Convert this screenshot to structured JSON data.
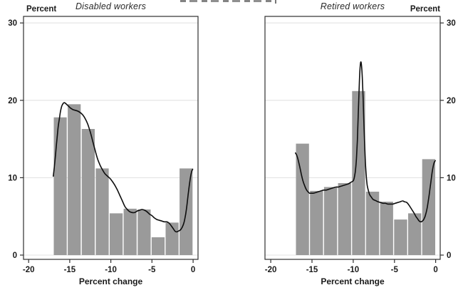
{
  "figure": {
    "kind": "two-panel histogram with kernel density curves",
    "background": "#ffffff"
  },
  "colors": {
    "bar_fill": "#9a9a9a",
    "density_curve": "#0d0d0d",
    "gridline": "#e3e3e3",
    "axis": "#2f2f2f",
    "text": "#1a1a1a"
  },
  "chart_data": [
    {
      "type": "bar",
      "variant": "histogram with kernel density overlay",
      "title": "Disabled workers",
      "xlabel": "Percent change",
      "ylabel": "Percent",
      "y_axis_side": "left",
      "grid": "horizontal",
      "xlim": [
        -20.62,
        0.6
      ],
      "ylim": [
        -0.55,
        30.85
      ],
      "x_ticks": [
        -20,
        -15,
        -10,
        -5,
        0
      ],
      "y_ticks": [
        0,
        10,
        20,
        30
      ],
      "bins": {
        "start": -17,
        "width": 1.7,
        "heights": [
          17.8,
          19.5,
          16.3,
          11.2,
          5.4,
          6.0,
          5.9,
          2.3,
          4.2,
          11.2
        ]
      },
      "density_curve": [
        [
          -17.0,
          10.2
        ],
        [
          -16.85,
          11.6
        ],
        [
          -16.7,
          13.3
        ],
        [
          -16.55,
          15.0
        ],
        [
          -16.4,
          16.6
        ],
        [
          -16.25,
          17.7
        ],
        [
          -16.1,
          18.7
        ],
        [
          -15.95,
          19.3
        ],
        [
          -15.8,
          19.6
        ],
        [
          -15.65,
          19.7
        ],
        [
          -15.5,
          19.6
        ],
        [
          -15.3,
          19.4
        ],
        [
          -15.1,
          19.2
        ],
        [
          -14.9,
          19.0
        ],
        [
          -14.6,
          18.8
        ],
        [
          -14.3,
          18.7
        ],
        [
          -14.0,
          18.6
        ],
        [
          -13.7,
          18.4
        ],
        [
          -13.4,
          18.1
        ],
        [
          -13.1,
          17.6
        ],
        [
          -12.8,
          16.9
        ],
        [
          -12.5,
          15.9
        ],
        [
          -12.2,
          14.7
        ],
        [
          -11.9,
          13.5
        ],
        [
          -11.6,
          12.4
        ],
        [
          -11.3,
          11.6
        ],
        [
          -11.0,
          11.0
        ],
        [
          -10.7,
          10.5
        ],
        [
          -10.4,
          10.2
        ],
        [
          -10.1,
          9.9
        ],
        [
          -9.8,
          9.5
        ],
        [
          -9.5,
          9.0
        ],
        [
          -9.2,
          8.4
        ],
        [
          -8.9,
          7.7
        ],
        [
          -8.6,
          7.0
        ],
        [
          -8.3,
          6.3
        ],
        [
          -8.0,
          5.9
        ],
        [
          -7.7,
          5.6
        ],
        [
          -7.4,
          5.5
        ],
        [
          -7.1,
          5.5
        ],
        [
          -6.8,
          5.7
        ],
        [
          -6.5,
          5.8
        ],
        [
          -6.2,
          5.9
        ],
        [
          -5.9,
          5.8
        ],
        [
          -5.6,
          5.6
        ],
        [
          -5.3,
          5.3
        ],
        [
          -5.0,
          5.1
        ],
        [
          -4.7,
          4.8
        ],
        [
          -4.4,
          4.6
        ],
        [
          -4.1,
          4.5
        ],
        [
          -3.8,
          4.4
        ],
        [
          -3.5,
          4.3
        ],
        [
          -3.2,
          4.3
        ],
        [
          -3.0,
          4.2
        ],
        [
          -2.8,
          4.0
        ],
        [
          -2.6,
          3.7
        ],
        [
          -2.4,
          3.4
        ],
        [
          -2.2,
          3.1
        ],
        [
          -2.0,
          3.0
        ],
        [
          -1.8,
          3.1
        ],
        [
          -1.5,
          3.3
        ],
        [
          -1.2,
          3.9
        ],
        [
          -1.0,
          4.7
        ],
        [
          -0.8,
          6.0
        ],
        [
          -0.6,
          7.8
        ],
        [
          -0.4,
          9.5
        ],
        [
          -0.2,
          10.7
        ],
        [
          -0.05,
          11.1
        ]
      ]
    },
    {
      "type": "bar",
      "variant": "histogram with kernel density overlay",
      "title": "Retired workers",
      "xlabel": "Percent change",
      "ylabel": "Percent",
      "y_axis_side": "right",
      "grid": "horizontal",
      "xlim": [
        -20.7,
        0.55
      ],
      "ylim": [
        -0.55,
        30.85
      ],
      "x_ticks": [
        -20,
        -15,
        -10,
        -5,
        0
      ],
      "y_ticks": [
        0,
        10,
        20,
        30
      ],
      "bins": {
        "start": -17,
        "width": 1.7,
        "heights": [
          14.4,
          8.3,
          8.8,
          9.3,
          21.2,
          8.2,
          6.9,
          4.6,
          5.4,
          12.4
        ]
      },
      "density_curve": [
        [
          -17.0,
          13.2
        ],
        [
          -16.85,
          12.9
        ],
        [
          -16.7,
          12.4
        ],
        [
          -16.5,
          11.5
        ],
        [
          -16.3,
          10.5
        ],
        [
          -16.1,
          9.6
        ],
        [
          -15.9,
          9.0
        ],
        [
          -15.7,
          8.5
        ],
        [
          -15.5,
          8.2
        ],
        [
          -15.3,
          8.0
        ],
        [
          -15.1,
          8.0
        ],
        [
          -14.8,
          8.0
        ],
        [
          -14.5,
          8.1
        ],
        [
          -14.2,
          8.2
        ],
        [
          -13.9,
          8.3
        ],
        [
          -13.6,
          8.4
        ],
        [
          -13.3,
          8.4
        ],
        [
          -13.0,
          8.5
        ],
        [
          -12.7,
          8.6
        ],
        [
          -12.4,
          8.7
        ],
        [
          -12.1,
          8.8
        ],
        [
          -11.8,
          8.8
        ],
        [
          -11.5,
          8.9
        ],
        [
          -11.2,
          9.0
        ],
        [
          -10.9,
          9.1
        ],
        [
          -10.6,
          9.2
        ],
        [
          -10.3,
          9.4
        ],
        [
          -10.0,
          9.6
        ],
        [
          -9.85,
          10.1
        ],
        [
          -9.7,
          11.2
        ],
        [
          -9.6,
          12.6
        ],
        [
          -9.5,
          14.8
        ],
        [
          -9.4,
          17.8
        ],
        [
          -9.3,
          21.0
        ],
        [
          -9.2,
          23.6
        ],
        [
          -9.1,
          24.9
        ],
        [
          -9.0,
          24.6
        ],
        [
          -8.9,
          23.0
        ],
        [
          -8.8,
          20.3
        ],
        [
          -8.7,
          17.0
        ],
        [
          -8.6,
          13.9
        ],
        [
          -8.5,
          11.6
        ],
        [
          -8.4,
          10.0
        ],
        [
          -8.3,
          9.0
        ],
        [
          -8.15,
          8.3
        ],
        [
          -8.0,
          7.8
        ],
        [
          -7.8,
          7.5
        ],
        [
          -7.6,
          7.2
        ],
        [
          -7.4,
          7.1
        ],
        [
          -7.2,
          7.0
        ],
        [
          -7.0,
          6.9
        ],
        [
          -6.7,
          6.8
        ],
        [
          -6.4,
          6.7
        ],
        [
          -6.1,
          6.7
        ],
        [
          -5.8,
          6.6
        ],
        [
          -5.5,
          6.6
        ],
        [
          -5.2,
          6.6
        ],
        [
          -4.9,
          6.7
        ],
        [
          -4.6,
          6.8
        ],
        [
          -4.3,
          6.9
        ],
        [
          -4.0,
          7.0
        ],
        [
          -3.8,
          6.9
        ],
        [
          -3.5,
          6.8
        ],
        [
          -3.2,
          6.4
        ],
        [
          -2.9,
          5.9
        ],
        [
          -2.6,
          5.4
        ],
        [
          -2.4,
          5.0
        ],
        [
          -2.2,
          4.7
        ],
        [
          -2.0,
          4.4
        ],
        [
          -1.8,
          4.3
        ],
        [
          -1.6,
          4.4
        ],
        [
          -1.4,
          4.7
        ],
        [
          -1.2,
          5.3
        ],
        [
          -1.0,
          6.3
        ],
        [
          -0.8,
          7.7
        ],
        [
          -0.6,
          9.3
        ],
        [
          -0.4,
          10.9
        ],
        [
          -0.2,
          11.9
        ],
        [
          -0.05,
          12.2
        ]
      ]
    }
  ]
}
